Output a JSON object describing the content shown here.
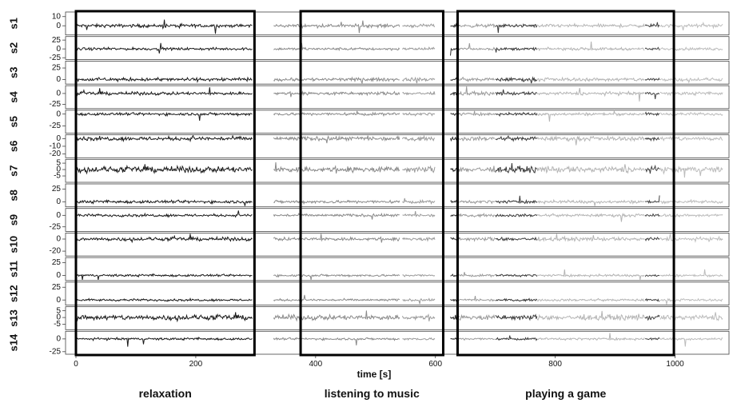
{
  "chart_data": {
    "type": "line",
    "xlabel": "time [s]",
    "xlim": [
      0,
      1090
    ],
    "x_ticks": [
      0,
      200,
      400,
      600,
      800,
      1000
    ],
    "grid": false,
    "legend": "none",
    "channels": [
      {
        "name": "s1",
        "ylim": [
          -10,
          15
        ],
        "yticks": [
          10,
          0
        ],
        "base": 0,
        "noise": 1.2
      },
      {
        "name": "s2",
        "ylim": [
          -30,
          35
        ],
        "yticks": [
          25,
          0,
          -25
        ],
        "base": 0,
        "noise": 2.5
      },
      {
        "name": "s3",
        "ylim": [
          -10,
          40
        ],
        "yticks": [
          25,
          0
        ],
        "base": 0,
        "noise": 2.5
      },
      {
        "name": "s4",
        "ylim": [
          -35,
          18
        ],
        "yticks": [
          0,
          -25
        ],
        "base": 0,
        "noise": 2.5
      },
      {
        "name": "s5",
        "ylim": [
          -40,
          8
        ],
        "yticks": [
          0,
          -25
        ],
        "base": 0,
        "noise": 2.0
      },
      {
        "name": "s6",
        "ylim": [
          -25,
          5
        ],
        "yticks": [
          0,
          -10,
          -20
        ],
        "base": 0,
        "noise": 1.8
      },
      {
        "name": "s7",
        "ylim": [
          -10,
          8
        ],
        "yticks": [
          5,
          0,
          -5
        ],
        "base": 0,
        "noise": 1.6
      },
      {
        "name": "s8",
        "ylim": [
          -10,
          35
        ],
        "yticks": [
          25,
          0
        ],
        "base": 0,
        "noise": 2.0
      },
      {
        "name": "s9",
        "ylim": [
          -35,
          15
        ],
        "yticks": [
          0,
          -25
        ],
        "base": 0,
        "noise": 2.0
      },
      {
        "name": "s10",
        "ylim": [
          -28,
          10
        ],
        "yticks": [
          0,
          -20
        ],
        "base": 0,
        "noise": 2.0
      },
      {
        "name": "s11",
        "ylim": [
          -10,
          35
        ],
        "yticks": [
          25,
          0
        ],
        "base": 0,
        "noise": 1.5
      },
      {
        "name": "s12",
        "ylim": [
          -10,
          35
        ],
        "yticks": [
          25,
          0
        ],
        "base": 0,
        "noise": 1.5
      },
      {
        "name": "s13",
        "ylim": [
          -9,
          8
        ],
        "yticks": [
          5,
          0,
          -5
        ],
        "base": 0,
        "noise": 1.3
      },
      {
        "name": "s14",
        "ylim": [
          -30,
          15
        ],
        "yticks": [
          0,
          -25
        ],
        "base": 0,
        "noise": 1.5
      }
    ],
    "segments": [
      {
        "x": [
          0,
          295
        ],
        "color": "#1a1a1a"
      },
      {
        "x": [
          330,
          540
        ],
        "color": "#8a8a8a"
      },
      {
        "x": [
          545,
          600
        ],
        "color": "#9a9a9a"
      },
      {
        "x": [
          625,
          640
        ],
        "color": "#2a2a2a"
      },
      {
        "x": [
          640,
          700
        ],
        "color": "#9a9a9a"
      },
      {
        "x": [
          700,
          770
        ],
        "color": "#3a3a3a"
      },
      {
        "x": [
          770,
          950
        ],
        "color": "#b4b4b4"
      },
      {
        "x": [
          950,
          975
        ],
        "color": "#444444"
      },
      {
        "x": [
          975,
          1080
        ],
        "color": "#bcbcbc"
      }
    ],
    "phases": [
      {
        "label": "relaxation",
        "x": [
          0,
          298
        ]
      },
      {
        "label": "listening to music",
        "x": [
          375,
          613
        ]
      },
      {
        "label": "playing a game",
        "x": [
          637,
          998
        ]
      }
    ]
  }
}
